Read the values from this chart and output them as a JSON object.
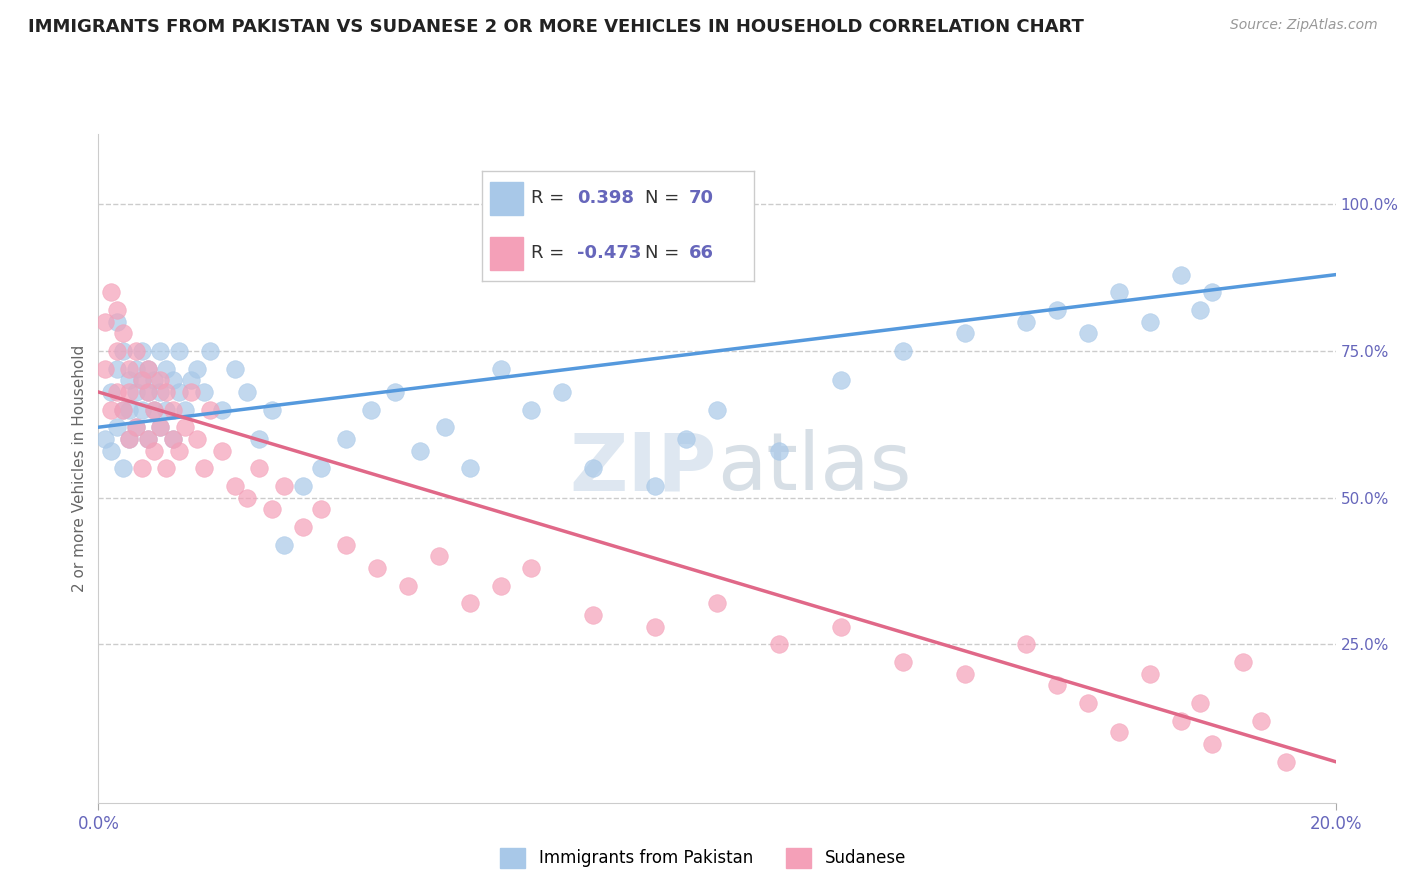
{
  "title": "IMMIGRANTS FROM PAKISTAN VS SUDANESE 2 OR MORE VEHICLES IN HOUSEHOLD CORRELATION CHART",
  "source": "Source: ZipAtlas.com",
  "ylabel": "2 or more Vehicles in Household",
  "right_yticks": [
    "100.0%",
    "75.0%",
    "50.0%",
    "25.0%"
  ],
  "right_ytick_vals": [
    1.0,
    0.75,
    0.5,
    0.25
  ],
  "xmin": 0.0,
  "xmax": 0.2,
  "ymin": -0.02,
  "ymax": 1.12,
  "series1_label": "Immigrants from Pakistan",
  "series1_color": "#a8c8e8",
  "series1_line_color": "#5599dd",
  "series1_R": 0.398,
  "series1_N": 70,
  "series2_label": "Sudanese",
  "series2_color": "#f4a0b8",
  "series2_line_color": "#e06888",
  "series2_R": -0.473,
  "series2_N": 66,
  "watermark": "ZIPatlas",
  "background_color": "#ffffff",
  "grid_color": "#cccccc",
  "title_color": "#222222",
  "axis_label_color": "#6666bb",
  "pakistan_x": [
    0.001,
    0.002,
    0.002,
    0.003,
    0.003,
    0.003,
    0.004,
    0.004,
    0.004,
    0.005,
    0.005,
    0.005,
    0.006,
    0.006,
    0.006,
    0.007,
    0.007,
    0.007,
    0.008,
    0.008,
    0.008,
    0.009,
    0.009,
    0.01,
    0.01,
    0.01,
    0.011,
    0.011,
    0.012,
    0.012,
    0.013,
    0.013,
    0.014,
    0.015,
    0.016,
    0.017,
    0.018,
    0.02,
    0.022,
    0.024,
    0.026,
    0.028,
    0.03,
    0.033,
    0.036,
    0.04,
    0.044,
    0.048,
    0.052,
    0.056,
    0.06,
    0.065,
    0.07,
    0.075,
    0.08,
    0.09,
    0.095,
    0.1,
    0.11,
    0.12,
    0.13,
    0.14,
    0.15,
    0.155,
    0.16,
    0.165,
    0.17,
    0.175,
    0.178,
    0.18
  ],
  "pakistan_y": [
    0.6,
    0.58,
    0.68,
    0.62,
    0.72,
    0.8,
    0.65,
    0.55,
    0.75,
    0.6,
    0.7,
    0.65,
    0.68,
    0.62,
    0.72,
    0.65,
    0.7,
    0.75,
    0.6,
    0.68,
    0.72,
    0.65,
    0.7,
    0.62,
    0.68,
    0.75,
    0.65,
    0.72,
    0.6,
    0.7,
    0.68,
    0.75,
    0.65,
    0.7,
    0.72,
    0.68,
    0.75,
    0.65,
    0.72,
    0.68,
    0.6,
    0.65,
    0.42,
    0.52,
    0.55,
    0.6,
    0.65,
    0.68,
    0.58,
    0.62,
    0.55,
    0.72,
    0.65,
    0.68,
    0.55,
    0.52,
    0.6,
    0.65,
    0.58,
    0.7,
    0.75,
    0.78,
    0.8,
    0.82,
    0.78,
    0.85,
    0.8,
    0.88,
    0.82,
    0.85
  ],
  "sudanese_x": [
    0.001,
    0.001,
    0.002,
    0.002,
    0.003,
    0.003,
    0.003,
    0.004,
    0.004,
    0.005,
    0.005,
    0.005,
    0.006,
    0.006,
    0.007,
    0.007,
    0.008,
    0.008,
    0.008,
    0.009,
    0.009,
    0.01,
    0.01,
    0.011,
    0.011,
    0.012,
    0.012,
    0.013,
    0.014,
    0.015,
    0.016,
    0.017,
    0.018,
    0.02,
    0.022,
    0.024,
    0.026,
    0.028,
    0.03,
    0.033,
    0.036,
    0.04,
    0.045,
    0.05,
    0.055,
    0.06,
    0.065,
    0.07,
    0.08,
    0.09,
    0.1,
    0.11,
    0.12,
    0.13,
    0.14,
    0.15,
    0.155,
    0.16,
    0.165,
    0.17,
    0.175,
    0.178,
    0.18,
    0.185,
    0.188,
    0.192
  ],
  "sudanese_y": [
    0.72,
    0.8,
    0.85,
    0.65,
    0.75,
    0.68,
    0.82,
    0.78,
    0.65,
    0.72,
    0.6,
    0.68,
    0.75,
    0.62,
    0.7,
    0.55,
    0.68,
    0.72,
    0.6,
    0.65,
    0.58,
    0.62,
    0.7,
    0.68,
    0.55,
    0.6,
    0.65,
    0.58,
    0.62,
    0.68,
    0.6,
    0.55,
    0.65,
    0.58,
    0.52,
    0.5,
    0.55,
    0.48,
    0.52,
    0.45,
    0.48,
    0.42,
    0.38,
    0.35,
    0.4,
    0.32,
    0.35,
    0.38,
    0.3,
    0.28,
    0.32,
    0.25,
    0.28,
    0.22,
    0.2,
    0.25,
    0.18,
    0.15,
    0.1,
    0.2,
    0.12,
    0.15,
    0.08,
    0.22,
    0.12,
    0.05
  ],
  "trend_pk_y0": 0.62,
  "trend_pk_y1": 0.88,
  "trend_sd_y0": 0.68,
  "trend_sd_y1": 0.05
}
